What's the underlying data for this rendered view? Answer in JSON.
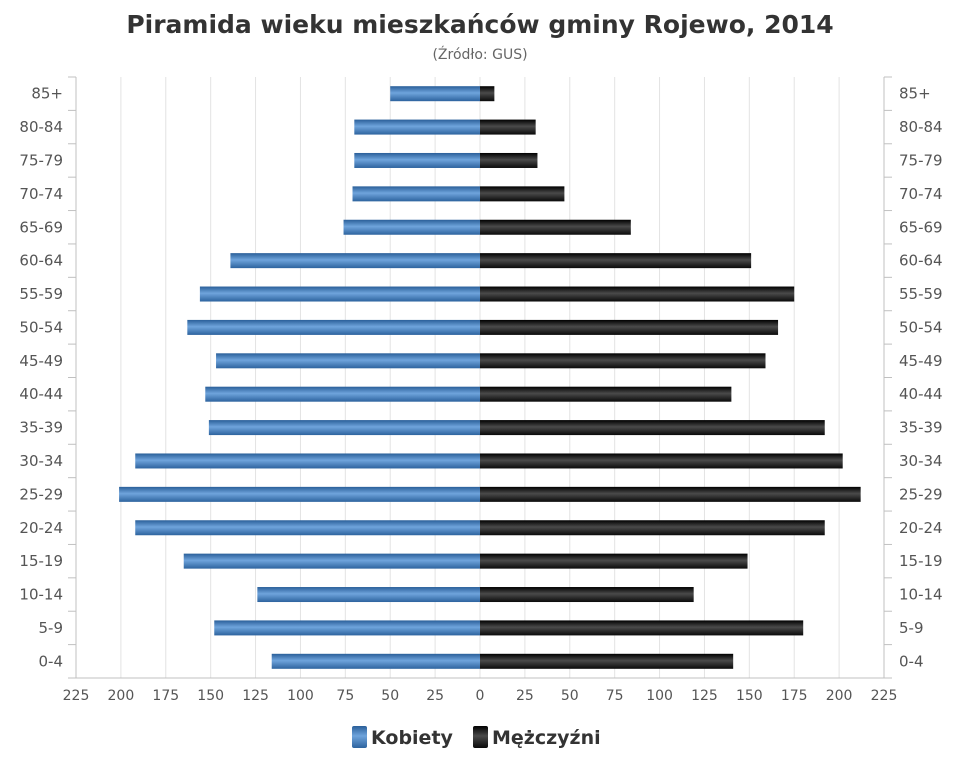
{
  "chart_data": {
    "type": "bar",
    "orientation": "horizontal",
    "variant": "population-pyramid",
    "title": "Piramida wieku mieszkańców gminy Rojewo, 2014",
    "subtitle": "(Źródło: GUS)",
    "categories": [
      "0-4",
      "5-9",
      "10-14",
      "15-19",
      "20-24",
      "25-29",
      "30-34",
      "35-39",
      "40-44",
      "45-49",
      "50-54",
      "55-59",
      "60-64",
      "65-69",
      "70-74",
      "75-79",
      "80-84",
      "85+"
    ],
    "series": [
      {
        "name": "Kobiety",
        "side": "left",
        "color": "#3f7fc1",
        "values": [
          116,
          148,
          124,
          165,
          192,
          201,
          192,
          151,
          153,
          147,
          163,
          156,
          139,
          76,
          71,
          70,
          70,
          50
        ]
      },
      {
        "name": "Mężczyźni",
        "side": "right",
        "color": "#1c1c1c",
        "values": [
          141,
          180,
          119,
          149,
          192,
          212,
          202,
          192,
          140,
          159,
          166,
          175,
          151,
          84,
          47,
          32,
          31,
          8
        ]
      }
    ],
    "xlim": [
      -225,
      225
    ],
    "x_ticks": [
      "225",
      "200",
      "175",
      "150",
      "125",
      "100",
      "75",
      "50",
      "25",
      "0",
      "25",
      "50",
      "75",
      "100",
      "125",
      "150",
      "175",
      "200",
      "225"
    ],
    "grid": true,
    "legend": "bottom-center"
  }
}
